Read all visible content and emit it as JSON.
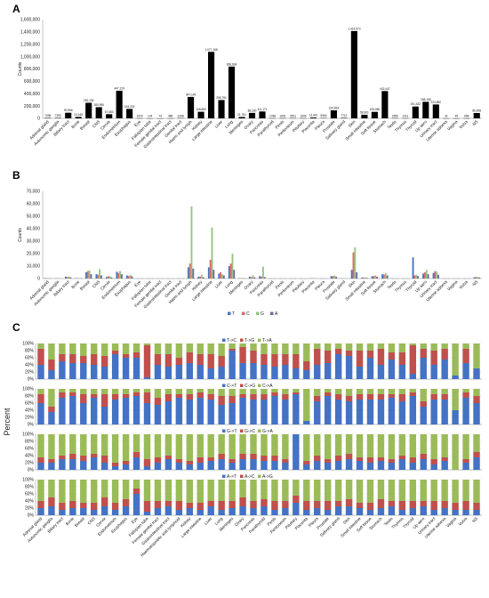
{
  "panels": [
    {
      "letter": "A"
    },
    {
      "letter": "B"
    },
    {
      "letter": "C"
    }
  ],
  "chart_data": [
    {
      "type": "bar",
      "panel": "A",
      "ylabel": "Counts",
      "ylim": [
        0,
        1600000
      ],
      "ytick_labels": [
        "0",
        "200,000",
        "400,000",
        "600,000",
        "800,000",
        "1,000,000",
        "1,200,000",
        "1,400,000",
        "1,600,000"
      ],
      "categories": [
        "Adrenal gland",
        "Autonomic ganglia",
        "Biliary tract",
        "Bone",
        "Breast",
        "CNS",
        "Cervix",
        "Endometrium",
        "Esophagus",
        "Eye",
        "Fallopian tube",
        "Female genital tract",
        "Gastrointestinal tract",
        "Genital tract",
        "Haem and lymph",
        "Kidney",
        "Large intestine",
        "Liver",
        "Lung",
        "Meninges",
        "Ovary",
        "Pancreas",
        "Parathyroid",
        "Penis",
        "Peritoneum",
        "Pituitary",
        "Placenta",
        "Pleura",
        "Prostate",
        "Salivary gland",
        "Skin",
        "Small intestine",
        "Soft tissue",
        "Stomach",
        "Testis",
        "Thymus",
        "Thyroid",
        "Up aero",
        "Urinary tract",
        "Uterine adnexa",
        "Vagina",
        "Vulva",
        "NS"
      ],
      "values": [
        7096,
        7393,
        90956,
        23165,
        252135,
        180995,
        67650,
        447129,
        153233,
        1020,
        124,
        73,
        485,
        2398,
        347149,
        106650,
        1077168,
        296791,
        838834,
        21761,
        88330,
        111171,
        1788,
        1651,
        2501,
        1696,
        13441,
        5064,
        129833,
        7712,
        1414573,
        58361,
        105080,
        442447,
        2550,
        1311,
        191432,
        268108,
        224850,
        32,
        35,
        658,
        86659
      ],
      "value_labels": [
        "7096",
        "7393",
        "90,956",
        "23,165",
        "252,135",
        "180,995",
        "67,650",
        "447,129",
        "153,233",
        "1020",
        "124",
        "73",
        "485",
        "2398",
        "347,149",
        "106,650",
        "1,077,168",
        "296,791",
        "838,834",
        "21,761",
        "88,330",
        "111,171",
        "1788",
        "1651",
        "2501",
        "1696",
        "13,441",
        "5064",
        "129,833",
        "7712",
        "1,414,573",
        "58,361",
        "105,080",
        "442,447",
        "2550",
        "1311",
        "191,432",
        "268,108",
        "224,850",
        "32",
        "35",
        "658",
        "86,659"
      ],
      "color": "#000000"
    },
    {
      "type": "bar",
      "panel": "B",
      "ylabel": "Counts",
      "ylim": [
        0,
        70000
      ],
      "ytick_labels": [
        "0",
        "10,000",
        "20,000",
        "30,000",
        "40,000",
        "50,000",
        "60,000",
        "70,000"
      ],
      "categories": [
        "Adrenal gland",
        "Autonomic ganglia",
        "Biliary tract",
        "Bone",
        "Breast",
        "CNS",
        "Cervix",
        "Endometrium",
        "Esophagus",
        "Eye",
        "Fallopian tube",
        "Female genital tract",
        "Gastrointestinal tract",
        "Genital tract",
        "Haem and lymph",
        "Kidney",
        "Large intestine",
        "Liver",
        "Lung",
        "Meninges",
        "Ovary",
        "Pancreas",
        "Parathyroid",
        "Penis",
        "Peritoneum",
        "Pituitary",
        "Placenta",
        "Pleura",
        "Prostate",
        "Salivary gland",
        "Skin",
        "Small intestine",
        "Soft tissue",
        "Stomach",
        "Testis",
        "Thymus",
        "Thyroid",
        "Up aero",
        "Urinary tract",
        "Uterine adnexa",
        "Vagina",
        "Vulva",
        "NS"
      ],
      "series": [
        {
          "name": "T",
          "color": "#4472C4",
          "values": [
            400,
            200,
            1500,
            300,
            5000,
            3500,
            1200,
            5500,
            2500,
            50,
            10,
            5,
            20,
            100,
            9000,
            1500,
            9000,
            4000,
            10000,
            300,
            1500,
            2000,
            50,
            50,
            80,
            50,
            200,
            100,
            2000,
            150,
            7000,
            800,
            1800,
            3500,
            80,
            50,
            17000,
            4000,
            4500,
            5,
            5,
            20,
            1000
          ]
        },
        {
          "name": "C",
          "color": "#E06666",
          "values": [
            300,
            150,
            1200,
            250,
            6000,
            3000,
            1800,
            4500,
            2000,
            40,
            10,
            5,
            20,
            80,
            12000,
            1500,
            15000,
            5000,
            12000,
            300,
            1200,
            1500,
            40,
            40,
            60,
            40,
            200,
            80,
            1800,
            150,
            21000,
            700,
            2000,
            3200,
            70,
            40,
            2500,
            5000,
            6000,
            5,
            5,
            20,
            1200
          ]
        },
        {
          "name": "G",
          "color": "#93C47D",
          "values": [
            350,
            200,
            1600,
            300,
            6500,
            7500,
            2000,
            6000,
            2800,
            60,
            10,
            5,
            25,
            100,
            58000,
            3000,
            41000,
            3500,
            20000,
            400,
            2500,
            9500,
            50,
            50,
            80,
            50,
            250,
            100,
            2500,
            200,
            25000,
            1000,
            2500,
            4500,
            90,
            60,
            3000,
            7000,
            5500,
            5,
            5,
            25,
            1300
          ]
        },
        {
          "name": "A",
          "color": "#6E6A9E",
          "values": [
            250,
            150,
            900,
            200,
            3500,
            2500,
            900,
            3500,
            1800,
            30,
            5,
            5,
            15,
            60,
            8000,
            1000,
            7000,
            2500,
            7000,
            200,
            1000,
            1200,
            30,
            30,
            50,
            30,
            150,
            60,
            1500,
            100,
            5000,
            500,
            1500,
            2500,
            60,
            30,
            2000,
            3500,
            3000,
            5,
            5,
            15,
            800
          ]
        }
      ]
    },
    {
      "type": "bar",
      "panel": "C",
      "stacked": true,
      "ylabel": "Percent",
      "ytick_labels": [
        "0%",
        "20%",
        "40%",
        "60%",
        "80%",
        "100%"
      ],
      "categories": [
        "Adrenal gland",
        "Autonomic ganglia",
        "Biliary tract",
        "Bone",
        "Breast",
        "CNS",
        "Cervix",
        "Endometrium",
        "Esophagus",
        "Eye",
        "Fallopian tube",
        "Female genital tract",
        "Gastrointestinal tract",
        "Haematopoietic and lymphoid",
        "Kidney",
        "Large intestine",
        "Liver",
        "Lung",
        "Meninges",
        "Ovary",
        "Pancreas",
        "Parathyroid",
        "Penis",
        "Peritoneum",
        "Pituitary",
        "Placenta",
        "Pleura",
        "Prostate",
        "Salivary gland",
        "Skin",
        "Small intestine",
        "Soft tissue",
        "Stomach",
        "Testis",
        "Thymus",
        "Thyroid",
        "Up aero",
        "Urinary tract",
        "Uterine adnexa",
        "Vagina",
        "Vulva",
        "NS"
      ],
      "subplots": [
        {
          "legend": [
            "T->C",
            "T->G",
            "T->A"
          ],
          "colors": [
            "#4472C4",
            "#C0504D",
            "#9BBB59"
          ],
          "a": [
            40,
            25,
            50,
            45,
            45,
            40,
            35,
            70,
            60,
            60,
            5,
            40,
            35,
            40,
            45,
            40,
            30,
            35,
            80,
            45,
            45,
            40,
            35,
            40,
            30,
            25,
            40,
            45,
            70,
            65,
            35,
            60,
            40,
            55,
            40,
            15,
            60,
            40,
            55,
            10,
            45,
            30
          ],
          "b": [
            45,
            30,
            20,
            25,
            20,
            30,
            30,
            10,
            10,
            15,
            90,
            30,
            35,
            20,
            30,
            30,
            40,
            30,
            5,
            45,
            35,
            30,
            35,
            30,
            40,
            25,
            45,
            35,
            15,
            15,
            45,
            20,
            45,
            20,
            35,
            80,
            25,
            40,
            30,
            0,
            40,
            0
          ]
        },
        {
          "legend": [
            "C->T",
            "C->G",
            "C->A"
          ],
          "colors": [
            "#4472C4",
            "#C0504D",
            "#9BBB59"
          ],
          "a": [
            60,
            35,
            75,
            80,
            60,
            75,
            50,
            70,
            75,
            80,
            60,
            55,
            65,
            75,
            70,
            75,
            70,
            55,
            60,
            75,
            70,
            70,
            80,
            70,
            85,
            10,
            65,
            80,
            70,
            65,
            70,
            70,
            70,
            75,
            65,
            80,
            50,
            70,
            70,
            40,
            75,
            60
          ],
          "b": [
            25,
            15,
            15,
            10,
            25,
            10,
            35,
            15,
            10,
            10,
            30,
            20,
            20,
            10,
            15,
            15,
            15,
            25,
            20,
            10,
            15,
            15,
            10,
            15,
            5,
            0,
            15,
            10,
            15,
            15,
            15,
            15,
            15,
            10,
            20,
            10,
            15,
            15,
            15,
            0,
            15,
            20
          ]
        },
        {
          "legend": [
            "G->T",
            "G->C",
            "G->A"
          ],
          "colors": [
            "#4472C4",
            "#C0504D",
            "#9BBB59"
          ],
          "a": [
            20,
            20,
            30,
            30,
            25,
            35,
            20,
            10,
            15,
            35,
            10,
            20,
            30,
            20,
            15,
            20,
            25,
            30,
            20,
            30,
            30,
            25,
            25,
            20,
            100,
            15,
            25,
            20,
            25,
            30,
            25,
            20,
            25,
            20,
            30,
            20,
            30,
            15,
            25,
            0,
            20,
            35
          ],
          "b": [
            15,
            10,
            10,
            15,
            15,
            10,
            20,
            10,
            10,
            15,
            20,
            15,
            10,
            10,
            10,
            15,
            10,
            15,
            10,
            15,
            15,
            15,
            15,
            10,
            0,
            10,
            15,
            10,
            15,
            15,
            10,
            15,
            10,
            10,
            10,
            15,
            15,
            15,
            10,
            0,
            10,
            15
          ]
        },
        {
          "legend": [
            "A->T",
            "A->C",
            "A->G"
          ],
          "colors": [
            "#4472C4",
            "#C0504D",
            "#9BBB59"
          ],
          "a": [
            20,
            25,
            15,
            20,
            20,
            15,
            25,
            15,
            25,
            60,
            10,
            20,
            25,
            15,
            20,
            15,
            25,
            15,
            20,
            25,
            20,
            25,
            15,
            20,
            35,
            15,
            20,
            15,
            25,
            25,
            20,
            15,
            20,
            25,
            15,
            20,
            25,
            15,
            20,
            15,
            15,
            15
          ],
          "b": [
            20,
            25,
            20,
            20,
            15,
            20,
            25,
            20,
            20,
            15,
            30,
            20,
            15,
            25,
            15,
            20,
            15,
            25,
            20,
            25,
            20,
            20,
            25,
            20,
            20,
            25,
            20,
            25,
            15,
            20,
            15,
            20,
            25,
            15,
            25,
            20,
            15,
            25,
            20,
            20,
            25,
            20
          ]
        }
      ]
    }
  ]
}
